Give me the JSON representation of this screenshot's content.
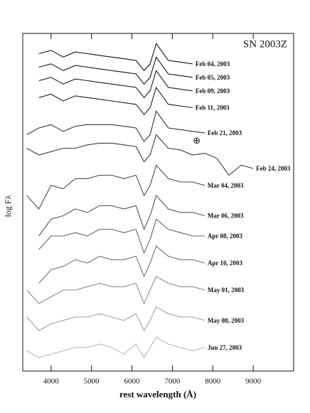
{
  "chart_data": {
    "type": "line",
    "title": "SN 2003Z",
    "x_label": "rest wavelength (Å)",
    "y_label": "log Fλ",
    "xlim": [
      3300,
      10000
    ],
    "ylim": [
      0,
      100
    ],
    "xticks": [
      4000,
      5000,
      6000,
      7000,
      8000,
      9000
    ],
    "x": [
      3400,
      3700,
      4000,
      4300,
      4600,
      4900,
      5200,
      5500,
      5800,
      6100,
      6300,
      6450,
      6600,
      6900,
      7200,
      7500,
      7800,
      8100,
      8400,
      8700,
      9000
    ],
    "annotations": [
      {
        "text": "⊕",
        "x": 7600,
        "y": 68
      }
    ],
    "series": [
      {
        "name": "Feb 04, 2003",
        "color": "#111111",
        "values": [
          null,
          94,
          95,
          93,
          94.5,
          94,
          93.5,
          93,
          92.5,
          92,
          89,
          91,
          97,
          92,
          91.5,
          91,
          null,
          null,
          null,
          null,
          null
        ]
      },
      {
        "name": "Feb 05, 2003",
        "color": "#151515",
        "values": [
          null,
          90,
          91,
          89,
          90.5,
          90,
          89.5,
          89,
          88.5,
          88,
          85,
          87,
          93,
          88,
          87.5,
          87,
          null,
          null,
          null,
          null,
          null
        ]
      },
      {
        "name": "Feb 09, 2003",
        "color": "#1a1a1a",
        "values": [
          null,
          86,
          87,
          85,
          86.5,
          86,
          85.5,
          85,
          84.5,
          84,
          81,
          83,
          89,
          84,
          83.5,
          83,
          null,
          null,
          null,
          null,
          null
        ]
      },
      {
        "name": "Feb 11, 2003",
        "color": "#202020",
        "values": [
          null,
          81,
          82,
          80,
          81.5,
          81,
          80.5,
          80,
          79.5,
          79,
          76,
          78,
          84,
          79,
          78.5,
          78,
          null,
          null,
          null,
          null,
          null
        ]
      },
      {
        "name": "Feb 21, 2003",
        "color": "#333333",
        "values": [
          70,
          72,
          73,
          71,
          72.5,
          73,
          73,
          73,
          72.5,
          72,
          68,
          70,
          77,
          72,
          71.5,
          71,
          70.5,
          null,
          null,
          null,
          null
        ]
      },
      {
        "name": "Feb 24, 2003",
        "color": "#3c3c3c",
        "values": [
          66,
          64,
          65,
          66,
          66,
          67,
          67.5,
          67.5,
          67,
          66.5,
          62,
          64,
          70,
          66,
          65.5,
          64,
          64.5,
          63,
          58,
          61,
          60
        ]
      },
      {
        "name": "Mar 04, 2003",
        "color": "#4a4a4a",
        "values": [
          52,
          48,
          55,
          54,
          57,
          57,
          58,
          58,
          57,
          58,
          52,
          55,
          61,
          57,
          56,
          56,
          55,
          null,
          null,
          null,
          null
        ]
      },
      {
        "name": "Mar 06, 2003",
        "color": "#555555",
        "values": [
          null,
          40,
          45,
          46,
          48,
          47,
          49,
          49,
          48,
          49,
          42,
          46,
          52,
          48,
          47,
          47,
          46,
          null,
          null,
          null,
          null
        ]
      },
      {
        "name": "Apr 08, 2003",
        "color": "#636363",
        "values": [
          null,
          36,
          40,
          40,
          41,
          40,
          42,
          42,
          41,
          42,
          35,
          39,
          45,
          42,
          41,
          40,
          40,
          null,
          null,
          null,
          null
        ]
      },
      {
        "name": "Apr 10, 2003",
        "color": "#727272",
        "values": [
          null,
          26,
          30,
          31,
          33,
          32,
          34,
          33,
          33,
          34,
          28,
          32,
          37,
          34,
          33,
          33,
          32,
          null,
          null,
          null,
          null
        ]
      },
      {
        "name": "May 01, 2003",
        "color": "#8a8a8a",
        "values": [
          24,
          20,
          22,
          24,
          24,
          25,
          26,
          25,
          25,
          26,
          20,
          24,
          28,
          26,
          25,
          25,
          24,
          null,
          null,
          null,
          null
        ]
      },
      {
        "name": "May 08, 2003",
        "color": "#a0a0a0",
        "values": [
          16,
          12,
          14,
          15,
          16,
          16,
          17,
          16,
          15,
          17,
          12,
          15,
          19,
          17,
          16,
          16,
          15,
          null,
          null,
          null,
          null
        ]
      },
      {
        "name": "Jun 27, 2003",
        "color": "#b8b8b8",
        "values": [
          6,
          4,
          5,
          6,
          7,
          7,
          8,
          7,
          5,
          8,
          4,
          7,
          10,
          8,
          7,
          6,
          7,
          null,
          null,
          null,
          null
        ]
      }
    ]
  }
}
